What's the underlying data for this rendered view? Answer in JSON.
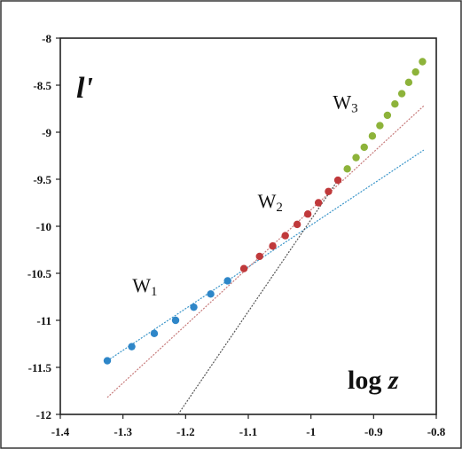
{
  "chart_data": {
    "type": "scatter",
    "title": "",
    "xlabel": "log z",
    "ylabel": "l'",
    "xlim": [
      -1.4,
      -0.8
    ],
    "ylim": [
      -12,
      -8
    ],
    "x_ticks": [
      -1.4,
      -1.3,
      -1.2,
      -1.1,
      -1,
      -0.9,
      -0.8
    ],
    "x_tick_labels": [
      "-1.4",
      "-1.3",
      "-1.2",
      "-1.1",
      "-1",
      "-0.9",
      "-0.8"
    ],
    "y_ticks": [
      -8,
      -8.5,
      -9,
      -9.5,
      -10,
      -10.5,
      -11,
      -11.5,
      -12
    ],
    "y_tick_labels": [
      "-8",
      "-8.5",
      "-9",
      "-9.5",
      "-10",
      "-10.5",
      "-11",
      "-11.5",
      "-12"
    ],
    "grid": false,
    "legend": "none",
    "series": [
      {
        "color": "#2e86c8",
        "points": [
          {
            "x": -1.325,
            "y": -11.43
          },
          {
            "x": -1.286,
            "y": -11.28
          },
          {
            "x": -1.25,
            "y": -11.14
          },
          {
            "x": -1.216,
            "y": -11.0
          },
          {
            "x": -1.187,
            "y": -10.86
          },
          {
            "x": -1.16,
            "y": -10.72
          },
          {
            "x": -1.133,
            "y": -10.58
          }
        ]
      },
      {
        "color": "#c0393b",
        "points": [
          {
            "x": -1.107,
            "y": -10.45
          },
          {
            "x": -1.082,
            "y": -10.32
          },
          {
            "x": -1.061,
            "y": -10.21
          },
          {
            "x": -1.041,
            "y": -10.1
          },
          {
            "x": -1.022,
            "y": -9.98
          },
          {
            "x": -1.005,
            "y": -9.87
          },
          {
            "x": -0.988,
            "y": -9.75
          },
          {
            "x": -0.972,
            "y": -9.63
          },
          {
            "x": -0.957,
            "y": -9.51
          }
        ]
      },
      {
        "color": "#8db33a",
        "points": [
          {
            "x": -0.942,
            "y": -9.39
          },
          {
            "x": -0.928,
            "y": -9.27
          },
          {
            "x": -0.915,
            "y": -9.16
          },
          {
            "x": -0.902,
            "y": -9.04
          },
          {
            "x": -0.89,
            "y": -8.93
          },
          {
            "x": -0.878,
            "y": -8.82
          },
          {
            "x": -0.866,
            "y": -8.7
          },
          {
            "x": -0.855,
            "y": -8.59
          },
          {
            "x": -0.844,
            "y": -8.47
          },
          {
            "x": -0.833,
            "y": -8.36
          },
          {
            "x": -0.822,
            "y": -8.25
          }
        ]
      }
    ],
    "fit_lines": [
      {
        "color": "#3a95c9",
        "from": {
          "x": -1.325,
          "y": -11.43
        },
        "to": {
          "x": -0.82,
          "y": -9.19
        }
      },
      {
        "color": "#c77b7b",
        "from": {
          "x": -1.325,
          "y": -11.82
        },
        "to": {
          "x": -0.82,
          "y": -8.72
        }
      },
      {
        "color": "#555555",
        "from": {
          "x": -1.212,
          "y": -12.0
        },
        "to": {
          "x": -0.957,
          "y": -9.51
        }
      }
    ],
    "annotations": [
      {
        "main": "W",
        "sub": "1",
        "x": -1.285,
        "y": -10.7
      },
      {
        "main": "W",
        "sub": "2",
        "x": -1.085,
        "y": -9.8
      },
      {
        "main": "W",
        "sub": "3",
        "x": -0.965,
        "y": -8.75
      }
    ],
    "ylabel_display": "l'",
    "xlabel_display": "log z"
  }
}
